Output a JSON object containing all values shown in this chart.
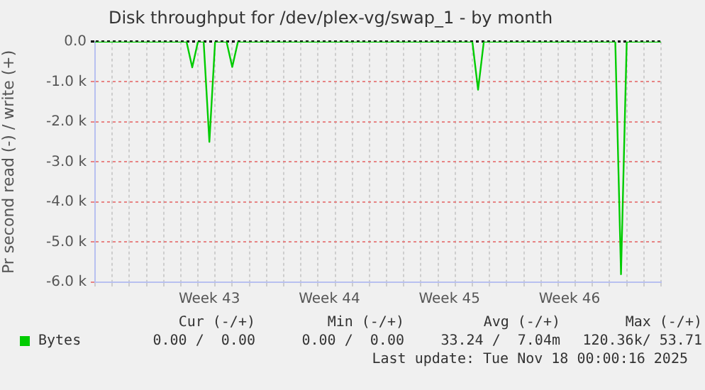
{
  "chart_data": {
    "type": "line",
    "title": "Disk throughput for /dev/plex-vg/swap_1 - by month",
    "ylabel": "Pr second read (-) / write (+)",
    "categories": [
      null,
      null,
      null,
      null,
      null,
      null,
      null,
      null,
      null,
      null,
      null,
      null,
      null,
      null,
      null,
      null,
      null,
      null,
      null,
      null,
      "Week 43",
      null,
      null,
      null,
      null,
      null,
      null,
      null,
      null,
      null,
      null,
      null,
      null,
      null,
      null,
      null,
      null,
      null,
      null,
      null,
      null,
      "Week 44",
      null,
      null,
      null,
      null,
      null,
      null,
      null,
      null,
      null,
      null,
      null,
      null,
      null,
      null,
      null,
      null,
      null,
      null,
      null,
      null,
      "Week 45",
      null,
      null,
      null,
      null,
      null,
      null,
      null,
      null,
      null,
      null,
      null,
      null,
      null,
      null,
      null,
      null,
      null,
      null,
      null,
      null,
      "Week 46",
      null,
      null,
      null,
      null,
      null,
      null,
      null,
      null,
      null,
      null,
      null,
      null,
      null,
      null,
      null,
      null
    ],
    "series": [
      {
        "name": "Bytes",
        "color": "#00cc00",
        "values": [
          0,
          0,
          0,
          0,
          0,
          0,
          0,
          0,
          0,
          0,
          0,
          0,
          0,
          0,
          0,
          0,
          0,
          -640,
          0,
          0,
          -2500,
          0,
          0,
          0,
          -630,
          0,
          0,
          0,
          0,
          0,
          0,
          0,
          0,
          0,
          0,
          0,
          0,
          0,
          0,
          0,
          0,
          0,
          0,
          0,
          0,
          0,
          0,
          0,
          0,
          0,
          0,
          0,
          0,
          0,
          0,
          0,
          0,
          0,
          0,
          0,
          0,
          0,
          0,
          0,
          0,
          0,
          0,
          -1200,
          0,
          0,
          0,
          0,
          0,
          0,
          0,
          0,
          0,
          0,
          0,
          0,
          0,
          0,
          0,
          0,
          0,
          0,
          0,
          0,
          0,
          0,
          0,
          0,
          -5800,
          0,
          0,
          0,
          0,
          0,
          0,
          0
        ]
      }
    ],
    "ylim": [
      -6000,
      0
    ],
    "yticks": [
      {
        "value": -6000,
        "label": "-6.0 k"
      },
      {
        "value": -5000,
        "label": "-5.0 k"
      },
      {
        "value": -4000,
        "label": "-4.0 k"
      },
      {
        "value": -3000,
        "label": "-3.0 k"
      },
      {
        "value": -2000,
        "label": "-2.0 k"
      },
      {
        "value": -1000,
        "label": "-1.0 k"
      },
      {
        "value": 0,
        "label": "0.0"
      }
    ],
    "grid": true,
    "legend": "bottom",
    "marker": "none",
    "line_style": "solid",
    "annotations": [
      "Cur (-/+)",
      "Min (-/+)",
      "Avg (-/+)",
      "Max (-/+)",
      "0.00 /  0.00",
      "0.00 /  0.00",
      "33.24 /  7.04m",
      "120.36k/ 53.71",
      "Last update: Tue Nov 18 00:00:16 2025"
    ]
  }
}
